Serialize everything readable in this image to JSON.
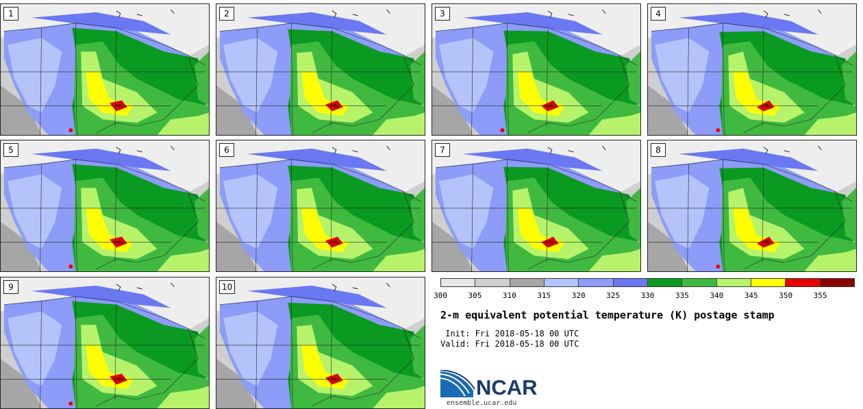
{
  "panels": [
    {
      "label": "1",
      "hot": true
    },
    {
      "label": "2",
      "hot": false
    },
    {
      "label": "3",
      "hot": true
    },
    {
      "label": "4",
      "hot": true
    },
    {
      "label": "5",
      "hot": true
    },
    {
      "label": "6",
      "hot": false
    },
    {
      "label": "7",
      "hot": false
    },
    {
      "label": "8",
      "hot": true
    },
    {
      "label": "9",
      "hot": true
    },
    {
      "label": "10",
      "hot": false
    }
  ],
  "colorbar": {
    "colors": [
      "#e6e6e6",
      "#cfcfcf",
      "#a6a6a6",
      "#b4c4fb",
      "#8c9cf8",
      "#6a78f2",
      "#0a9a21",
      "#40b940",
      "#b6f36b",
      "#ffff00",
      "#e60000",
      "#8b0000"
    ],
    "ticks": [
      "300",
      "305",
      "310",
      "315",
      "320",
      "325",
      "330",
      "335",
      "340",
      "345",
      "350",
      "355"
    ]
  },
  "title": "2-m equivalent potential temperature (K) postage stamp",
  "init": " Init: Fri 2018-05-18 00 UTC",
  "valid": "Valid: Fri 2018-05-18 00 UTC",
  "logo": {
    "text": "NCAR",
    "url": "ensemble.ucar.edu"
  }
}
